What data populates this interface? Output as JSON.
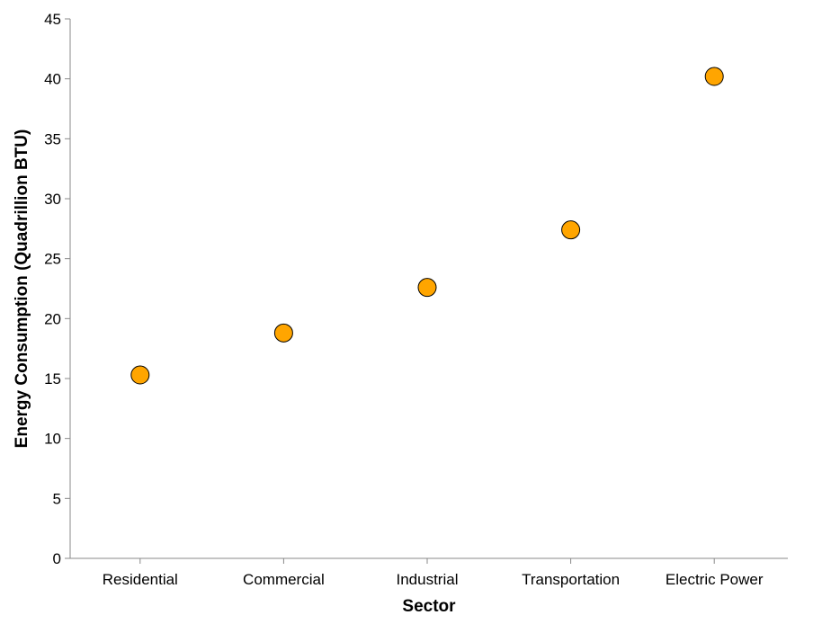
{
  "chart_data": {
    "type": "scatter",
    "title": "",
    "xlabel": "Sector",
    "ylabel": "Energy Consumption (Quadrillion BTU)",
    "categories": [
      "Residential",
      "Commercial",
      "Industrial",
      "Transportation",
      "Electric Power"
    ],
    "series": [
      {
        "values": [
          15.3,
          18.8,
          22.6,
          27.4,
          40.2
        ]
      }
    ],
    "ylim": [
      0,
      45
    ],
    "yticks": [
      0,
      5,
      10,
      15,
      20,
      25,
      30,
      35,
      40,
      45
    ],
    "grid": false,
    "legend": "none",
    "marker_color": "#FFA500",
    "marker_stroke": "#000000",
    "axis_color": "#888888"
  }
}
